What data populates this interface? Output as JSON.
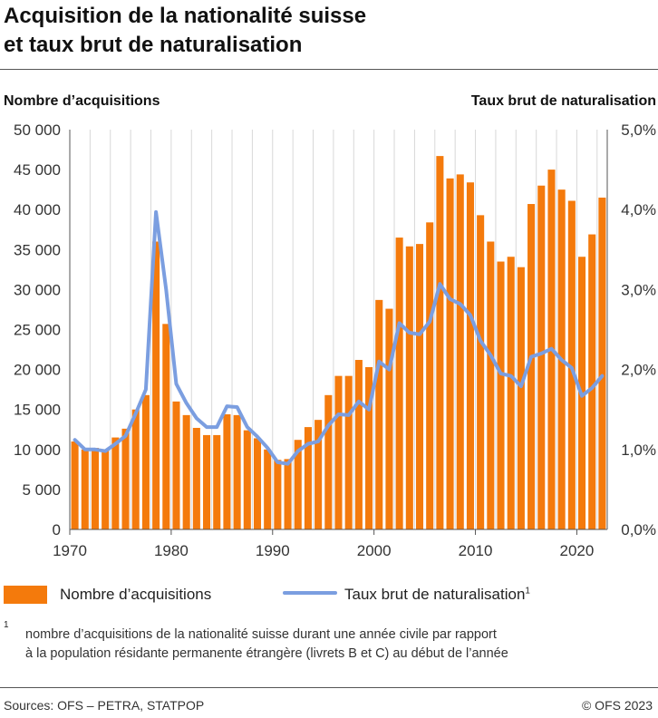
{
  "title_lines": [
    "Acquisition de la nationalité suisse",
    "et taux brut de naturalisation"
  ],
  "left_axis_title": "Nombre d’acquisitions",
  "right_axis_title": "Taux brut de naturalisation",
  "legend": {
    "bars": "Nombre d’acquisitions",
    "line": "Taux brut de naturalisation",
    "line_mark": "1"
  },
  "footnote": {
    "mark": "1",
    "lines": [
      "nombre d’acquisitions de la nationalité suisse durant une année civile par rapport",
      "à la population résidante permanente étrangère (livrets B et C) au début de l’année"
    ]
  },
  "source": "Sources: OFS – PETRA, STATPOP",
  "copyright": "© OFS 2023",
  "chart_data": {
    "type": "bar",
    "x": [
      1970,
      1971,
      1972,
      1973,
      1974,
      1975,
      1976,
      1977,
      1978,
      1979,
      1980,
      1981,
      1982,
      1983,
      1984,
      1985,
      1986,
      1987,
      1988,
      1989,
      1990,
      1991,
      1992,
      1993,
      1994,
      1995,
      1996,
      1997,
      1998,
      1999,
      2000,
      2001,
      2002,
      2003,
      2004,
      2005,
      2006,
      2007,
      2008,
      2009,
      2010,
      2011,
      2012,
      2013,
      2014,
      2015,
      2016,
      2017,
      2018,
      2019,
      2020,
      2021,
      2022
    ],
    "series": [
      {
        "name": "Nombre d’acquisitions",
        "type": "bar",
        "axis": "left",
        "color": "#f47a0c",
        "values": [
          11000,
          10000,
          10200,
          10000,
          11500,
          12600,
          15000,
          16800,
          36000,
          25700,
          16000,
          14300,
          12700,
          11800,
          11800,
          14400,
          14300,
          12400,
          11400,
          10000,
          8700,
          8800,
          11200,
          12800,
          13700,
          16800,
          19200,
          19200,
          21200,
          20300,
          28700,
          27600,
          36500,
          35400,
          35700,
          38400,
          46700,
          43900,
          44400,
          43400,
          39300,
          36000,
          33500,
          34100,
          32800,
          40700,
          43000,
          45000,
          42500,
          41100,
          34100,
          36900,
          41500
        ]
      },
      {
        "name": "Taux brut de naturalisation",
        "type": "line",
        "axis": "right",
        "color": "#7b9ee0",
        "values": [
          1.12,
          1.0,
          1.0,
          0.98,
          1.07,
          1.17,
          1.45,
          1.75,
          3.97,
          3.0,
          1.82,
          1.58,
          1.39,
          1.28,
          1.28,
          1.54,
          1.53,
          1.28,
          1.16,
          1.02,
          0.84,
          0.82,
          0.98,
          1.07,
          1.1,
          1.3,
          1.44,
          1.43,
          1.6,
          1.5,
          2.1,
          2.0,
          2.58,
          2.46,
          2.44,
          2.6,
          3.07,
          2.88,
          2.82,
          2.68,
          2.36,
          2.18,
          1.95,
          1.92,
          1.79,
          2.16,
          2.2,
          2.26,
          2.12,
          2.02,
          1.67,
          1.77,
          1.92
        ]
      }
    ],
    "left_axis": {
      "ylim": [
        0,
        50000
      ],
      "ticks": [
        "0",
        "5 000",
        "10 000",
        "15 000",
        "20 000",
        "25 000",
        "30 000",
        "35 000",
        "40 000",
        "45 000",
        "50 000"
      ]
    },
    "right_axis": {
      "ylim": [
        0,
        5
      ],
      "ticks": [
        "0,0%",
        "1,0%",
        "2,0%",
        "3,0%",
        "4,0%",
        "5,0%"
      ]
    },
    "x_ticks": [
      1970,
      1980,
      1990,
      2000,
      2010,
      2020
    ],
    "grid": {
      "vertical": true,
      "horizontal": false
    },
    "legend_position": "bottom"
  }
}
